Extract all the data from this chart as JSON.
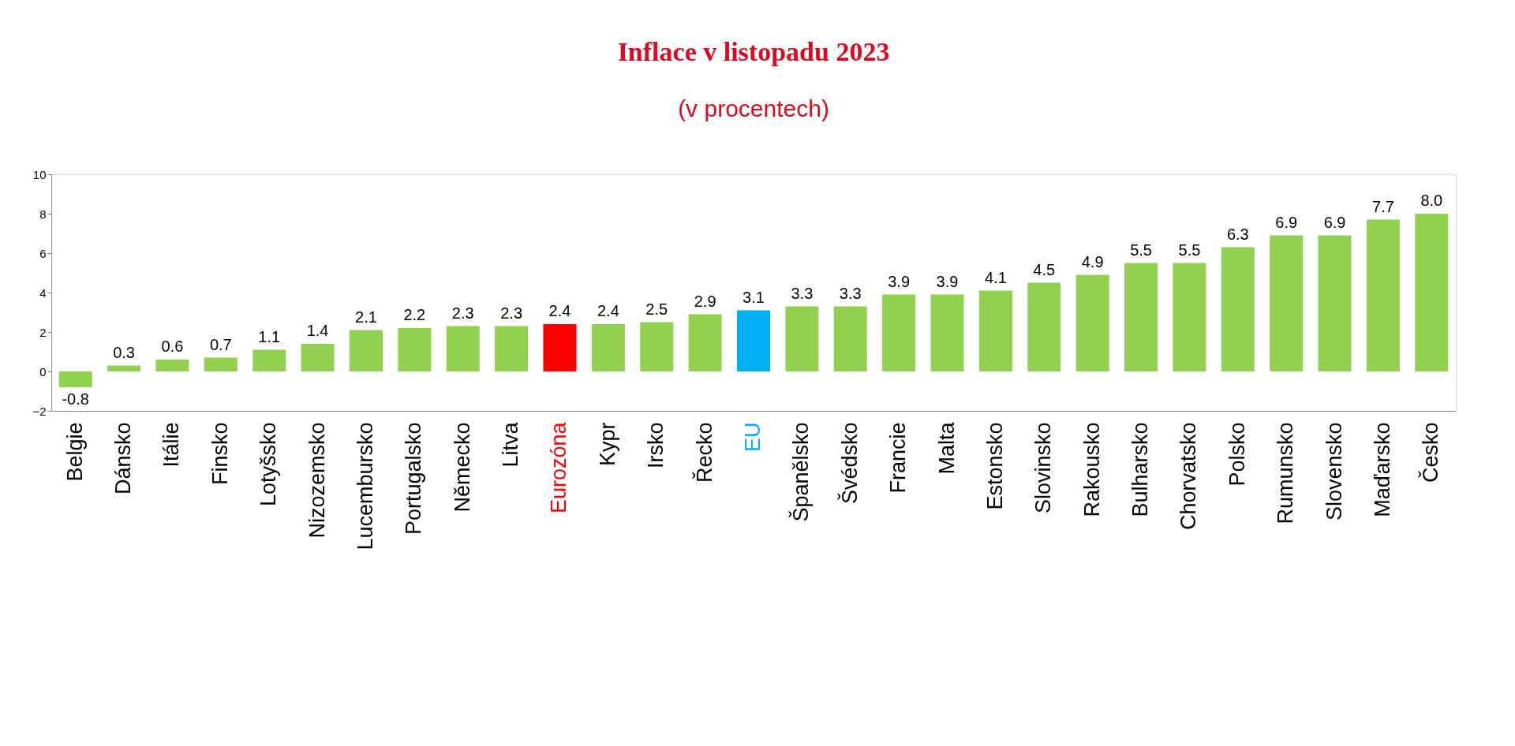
{
  "chart_data": {
    "type": "bar",
    "title": "Inflace v listopadu 2023",
    "subtitle": "(v procentech)",
    "categories": [
      "Belgie",
      "Dánsko",
      "Itálie",
      "Finsko",
      "Lotyšsko",
      "Nizozemsko",
      "Lucembursko",
      "Portugalsko",
      "Německo",
      "Litva",
      "Eurozóna",
      "Kypr",
      "Irsko",
      "Řecko",
      "EU",
      "Španělsko",
      "Švédsko",
      "Francie",
      "Malta",
      "Estonsko",
      "Slovinsko",
      "Rakousko",
      "Bulharsko",
      "Chorvatsko",
      "Polsko",
      "Rumunsko",
      "Slovensko",
      "Maďarsko",
      "Česko"
    ],
    "values": [
      -0.8,
      0.3,
      0.6,
      0.7,
      1.1,
      1.4,
      2.1,
      2.2,
      2.3,
      2.3,
      2.4,
      2.4,
      2.5,
      2.9,
      3.1,
      3.3,
      3.3,
      3.9,
      3.9,
      4.1,
      4.5,
      4.9,
      5.5,
      5.5,
      6.3,
      6.9,
      6.9,
      7.7,
      8.0
    ],
    "colors": [
      "#92d050",
      "#92d050",
      "#92d050",
      "#92d050",
      "#92d050",
      "#92d050",
      "#92d050",
      "#92d050",
      "#92d050",
      "#92d050",
      "#ff0000",
      "#92d050",
      "#92d050",
      "#92d050",
      "#00b0f0",
      "#92d050",
      "#92d050",
      "#92d050",
      "#92d050",
      "#92d050",
      "#92d050",
      "#92d050",
      "#92d050",
      "#92d050",
      "#92d050",
      "#92d050",
      "#92d050",
      "#92d050",
      "#92d050"
    ],
    "ylim": [
      -2,
      10
    ],
    "yticks": [
      -2,
      0,
      2,
      4,
      6,
      8,
      10
    ],
    "value_labels": [
      "-0.8",
      "0.3",
      "0.6",
      "0.7",
      "1.1",
      "1.4",
      "2.1",
      "2.2",
      "2.3",
      "2.3",
      "2.4",
      "2.4",
      "2.5",
      "2.9",
      "3.1",
      "3.3",
      "3.3",
      "3.9",
      "3.9",
      "4.1",
      "4.5",
      "4.9",
      "5.5",
      "5.5",
      "6.3",
      "6.9",
      "6.9",
      "7.7",
      "8.0"
    ],
    "grid": false
  }
}
